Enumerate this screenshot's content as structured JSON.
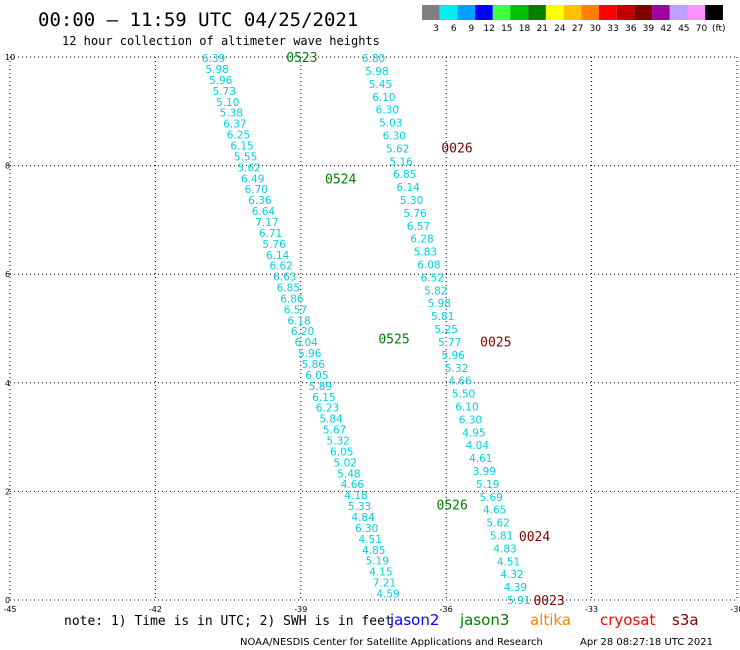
{
  "header": {
    "title": "00:00 – 11:59 UTC 04/25/2021",
    "subtitle": "12 hour collection of altimeter wave heights"
  },
  "legend": {
    "unit": "(ft)",
    "bins": [
      {
        "label": "3",
        "color": "#808080"
      },
      {
        "label": "6",
        "color": "#00f0f0"
      },
      {
        "label": "9",
        "color": "#00a0ff"
      },
      {
        "label": "12",
        "color": "#0000ff"
      },
      {
        "label": "15",
        "color": "#40ff40"
      },
      {
        "label": "18",
        "color": "#00c000"
      },
      {
        "label": "21",
        "color": "#008000"
      },
      {
        "label": "24",
        "color": "#ffff00"
      },
      {
        "label": "27",
        "color": "#ffc000"
      },
      {
        "label": "30",
        "color": "#ff8000"
      },
      {
        "label": "33",
        "color": "#ff0000"
      },
      {
        "label": "36",
        "color": "#c00000"
      },
      {
        "label": "39",
        "color": "#800000"
      },
      {
        "label": "42",
        "color": "#a000a0"
      },
      {
        "label": "45",
        "color": "#c0a0ff"
      },
      {
        "label": "70",
        "color": "#ff90ff"
      },
      {
        "label": "",
        "color": "#000000"
      }
    ]
  },
  "footer": {
    "note": "note: 1) Time is in UTC; 2) SWH is in feet",
    "satellites": [
      {
        "name": "jason2",
        "color": "#0000ff"
      },
      {
        "name": "jason3",
        "color": "#008000"
      },
      {
        "name": "altika",
        "color": "#ff8000"
      },
      {
        "name": "cryosat",
        "color": "#ff0000"
      },
      {
        "name": "s3a",
        "color": "#800000"
      }
    ],
    "credit": "NOAA/NESDIS Center for Satellite Applications and Research",
    "timestamp": "Apr 28 08:27:18 UTC 2021"
  },
  "chart_data": {
    "type": "scatter",
    "x_ticks": [
      "-45",
      "-42",
      "-39",
      "-36",
      "-33",
      "-30"
    ],
    "y_ticks": [
      "0",
      "2",
      "4",
      "6",
      "8",
      "10"
    ],
    "xlim": [
      -45,
      -30
    ],
    "ylim": [
      0,
      10
    ],
    "value_color": "#00d0e0",
    "tracks": [
      {
        "values": [
          "6.39",
          "5.98",
          "5.96",
          "5.73",
          "5.10",
          "5.38",
          "6.37",
          "6.25",
          "6.15",
          "5.55",
          "5.62",
          "6.49",
          "6.70",
          "6.36",
          "6.64",
          "7.17",
          "6.71",
          "5.76",
          "6.14",
          "6.62",
          "6.63",
          "6.85",
          "6.86",
          "6.57",
          "6.18",
          "6.20",
          "6.04",
          "5.96",
          "5.86",
          "6.05",
          "5.89",
          "6.15",
          "6.23",
          "5.84",
          "5.67",
          "5.32",
          "6.05",
          "5.02",
          "5.48",
          "4.66",
          "4.18",
          "5.33",
          "4.84",
          "6.30",
          "4.51",
          "4.85",
          "5.19",
          "4.15",
          "7.21",
          "4.59"
        ],
        "lon_start": -40.8,
        "lat_start": 9.98,
        "lon_end": -37.2,
        "lat_end": 0.12
      },
      {
        "values": [
          "6.80",
          "5.98",
          "5.45",
          "6.10",
          "6.30",
          "5.03",
          "6.30",
          "5.62",
          "5.16",
          "6.85",
          "6.14",
          "5.30",
          "5.76",
          "6.57",
          "6.28",
          "5.83",
          "6.08",
          "6.52",
          "5.82",
          "5.98",
          "5.81",
          "5.25",
          "5.77",
          "5.96",
          "5.32",
          "4.66",
          "5.50",
          "6.10",
          "6.30",
          "4.95",
          "4.04",
          "4.61",
          "3.99",
          "5.19",
          "5.69",
          "4.65",
          "5.62",
          "5.81",
          "4.83",
          "4.51",
          "4.32",
          "4.39",
          "5.91"
        ],
        "lon_start": -37.5,
        "lat_start": 9.98,
        "lon_end": -34.5,
        "lat_end": 0.0
      }
    ],
    "pass_labels": [
      {
        "text": "0523",
        "satellite": "jason3",
        "lon": -39.3,
        "lat": 10.0
      },
      {
        "text": "0026",
        "satellite": "s3a",
        "lon": -36.1,
        "lat": 8.33
      },
      {
        "text": "0524",
        "satellite": "jason3",
        "lon": -38.5,
        "lat": 7.76
      },
      {
        "text": "0525",
        "satellite": "jason3",
        "lon": -37.4,
        "lat": 4.82
      },
      {
        "text": "0025",
        "satellite": "s3a",
        "lon": -35.3,
        "lat": 4.76
      },
      {
        "text": "0526",
        "satellite": "jason3",
        "lon": -36.2,
        "lat": 1.76
      },
      {
        "text": "0024",
        "satellite": "s3a",
        "lon": -34.5,
        "lat": 1.18
      },
      {
        "text": "0023",
        "satellite": "s3a",
        "lon": -34.2,
        "lat": 0.0
      }
    ]
  }
}
